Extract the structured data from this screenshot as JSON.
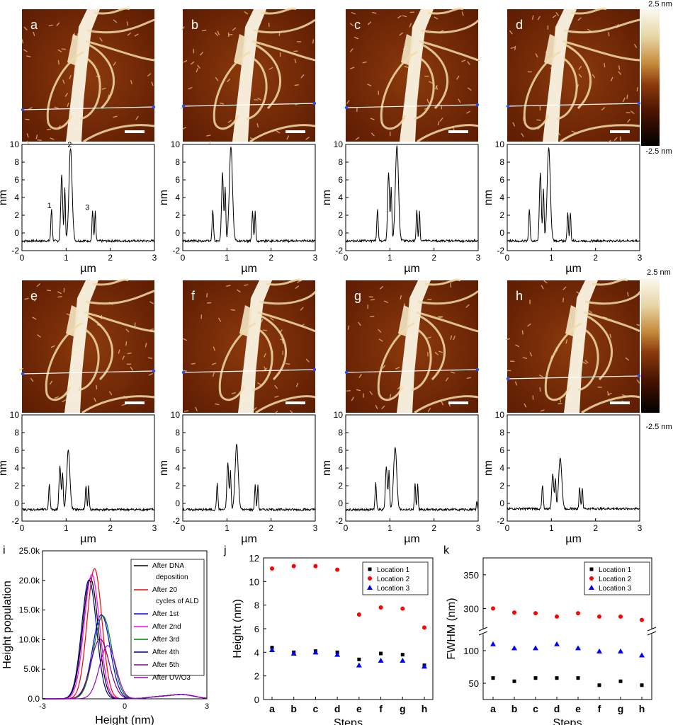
{
  "figure": {
    "colorbar": {
      "top_label": "2.5 nm",
      "bottom_label": "-2.5 nm"
    },
    "afm_panels": [
      {
        "label": "a",
        "line_color": "#ffffff"
      },
      {
        "label": "b",
        "line_color": "#ffffff"
      },
      {
        "label": "c",
        "line_color": "#ffffff"
      },
      {
        "label": "d",
        "line_color": "#ffffff"
      },
      {
        "label": "e",
        "line_color": "#ffffff"
      },
      {
        "label": "f",
        "line_color": "#ffffff"
      },
      {
        "label": "g",
        "line_color": "#ffffff"
      },
      {
        "label": "h",
        "line_color": "#ffffff"
      }
    ],
    "colors": {
      "afm_dark": "#5a1a02",
      "afm_mid": "#8c3a0c",
      "afm_bright": "#fbf5e4",
      "marker_blue": "#1f4fff",
      "loc1": "#000000",
      "loc2": "#ff0000",
      "loc3": "#0000ff"
    }
  },
  "chart_data": [
    {
      "panel": "a",
      "type": "line",
      "xlabel": "µm",
      "ylabel": "nm",
      "xlim": [
        0,
        3
      ],
      "ylim": [
        -2,
        10
      ],
      "xticks": [
        0,
        1,
        2,
        3
      ],
      "yticks": [
        -2,
        0,
        2,
        4,
        6,
        8,
        10
      ],
      "annotations": [
        {
          "text": "1",
          "x": 0.62,
          "y": 2.8
        },
        {
          "text": "2",
          "x": 1.08,
          "y": 9.7
        },
        {
          "text": "3",
          "x": 1.48,
          "y": 2.6
        }
      ],
      "peaks": [
        {
          "x": 0.67,
          "h": 2.7,
          "w": 0.022
        },
        {
          "x": 0.9,
          "h": 6.7,
          "w": 0.03
        },
        {
          "x": 0.97,
          "h": 5.0,
          "w": 0.02
        },
        {
          "x": 1.1,
          "h": 9.6,
          "w": 0.05
        },
        {
          "x": 1.6,
          "h": 2.5,
          "w": 0.02
        },
        {
          "x": 1.66,
          "h": 2.4,
          "w": 0.018
        }
      ],
      "baseline": -0.9
    },
    {
      "panel": "b",
      "type": "line",
      "xlabel": "µm",
      "ylabel": "nm",
      "xlim": [
        0,
        3
      ],
      "ylim": [
        -2,
        10
      ],
      "xticks": [
        0,
        1,
        2,
        3
      ],
      "yticks": [
        -2,
        0,
        2,
        4,
        6,
        8,
        10
      ],
      "peaks": [
        {
          "x": 0.68,
          "h": 2.7,
          "w": 0.022
        },
        {
          "x": 0.9,
          "h": 6.8,
          "w": 0.03
        },
        {
          "x": 0.96,
          "h": 5.0,
          "w": 0.02
        },
        {
          "x": 1.09,
          "h": 9.8,
          "w": 0.05
        },
        {
          "x": 1.58,
          "h": 2.5,
          "w": 0.02
        },
        {
          "x": 1.64,
          "h": 2.4,
          "w": 0.018
        }
      ],
      "baseline": -0.9
    },
    {
      "panel": "c",
      "type": "line",
      "xlabel": "µm",
      "ylabel": "nm",
      "xlim": [
        0,
        3
      ],
      "ylim": [
        -2,
        10
      ],
      "xticks": [
        0,
        1,
        2,
        3
      ],
      "yticks": [
        -2,
        0,
        2,
        4,
        6,
        8,
        10
      ],
      "peaks": [
        {
          "x": 0.72,
          "h": 2.7,
          "w": 0.022
        },
        {
          "x": 0.97,
          "h": 6.8,
          "w": 0.03
        },
        {
          "x": 1.03,
          "h": 5.0,
          "w": 0.02
        },
        {
          "x": 1.16,
          "h": 9.9,
          "w": 0.05
        },
        {
          "x": 1.61,
          "h": 2.6,
          "w": 0.02
        },
        {
          "x": 1.67,
          "h": 2.5,
          "w": 0.018
        }
      ],
      "baseline": -0.9
    },
    {
      "panel": "d",
      "type": "line",
      "xlabel": "µm",
      "ylabel": "nm",
      "xlim": [
        0,
        3
      ],
      "ylim": [
        -2,
        10
      ],
      "xticks": [
        0,
        1,
        2,
        3
      ],
      "yticks": [
        -2,
        0,
        2,
        4,
        6,
        8,
        10
      ],
      "peaks": [
        {
          "x": 0.5,
          "h": 2.7,
          "w": 0.022
        },
        {
          "x": 0.75,
          "h": 6.8,
          "w": 0.03
        },
        {
          "x": 0.82,
          "h": 5.0,
          "w": 0.02
        },
        {
          "x": 0.94,
          "h": 9.6,
          "w": 0.05
        },
        {
          "x": 1.37,
          "h": 2.4,
          "w": 0.02
        },
        {
          "x": 1.43,
          "h": 2.3,
          "w": 0.018
        }
      ],
      "baseline": -0.9
    },
    {
      "panel": "e",
      "type": "line",
      "xlabel": "µm",
      "ylabel": "nm",
      "xlim": [
        0,
        3
      ],
      "ylim": [
        -2,
        10
      ],
      "xticks": [
        0,
        1,
        2,
        3
      ],
      "yticks": [
        -2,
        0,
        2,
        4,
        6,
        8,
        10
      ],
      "peaks": [
        {
          "x": 0.62,
          "h": 2.2,
          "w": 0.022
        },
        {
          "x": 0.86,
          "h": 4.2,
          "w": 0.03
        },
        {
          "x": 0.92,
          "h": 3.4,
          "w": 0.02
        },
        {
          "x": 1.05,
          "h": 6.0,
          "w": 0.05
        },
        {
          "x": 1.45,
          "h": 2.1,
          "w": 0.02
        },
        {
          "x": 1.51,
          "h": 2.0,
          "w": 0.018
        }
      ],
      "baseline": -0.7
    },
    {
      "panel": "f",
      "type": "line",
      "xlabel": "µm",
      "ylabel": "nm",
      "xlim": [
        0,
        3
      ],
      "ylim": [
        -2,
        10
      ],
      "xticks": [
        0,
        1,
        2,
        3
      ],
      "yticks": [
        -2,
        0,
        2,
        4,
        6,
        8,
        10
      ],
      "peaks": [
        {
          "x": 0.78,
          "h": 2.2,
          "w": 0.022
        },
        {
          "x": 1.02,
          "h": 4.6,
          "w": 0.03
        },
        {
          "x": 1.08,
          "h": 3.6,
          "w": 0.02
        },
        {
          "x": 1.22,
          "h": 6.7,
          "w": 0.05
        },
        {
          "x": 1.64,
          "h": 2.1,
          "w": 0.02
        },
        {
          "x": 1.7,
          "h": 2.0,
          "w": 0.018
        }
      ],
      "baseline": -0.7
    },
    {
      "panel": "g",
      "type": "line",
      "xlabel": "µm",
      "ylabel": "nm",
      "xlim": [
        0,
        3
      ],
      "ylim": [
        -2,
        10
      ],
      "xticks": [
        0,
        1,
        2,
        3
      ],
      "yticks": [
        -2,
        0,
        2,
        4,
        6,
        8,
        10
      ],
      "peaks": [
        {
          "x": 0.68,
          "h": 2.3,
          "w": 0.022
        },
        {
          "x": 0.92,
          "h": 4.2,
          "w": 0.03
        },
        {
          "x": 0.98,
          "h": 3.6,
          "w": 0.02
        },
        {
          "x": 1.12,
          "h": 6.4,
          "w": 0.05
        },
        {
          "x": 1.57,
          "h": 2.2,
          "w": 0.02
        },
        {
          "x": 1.63,
          "h": 2.1,
          "w": 0.018
        },
        {
          "x": 2.97,
          "h": 0.3,
          "w": 0.015
        }
      ],
      "baseline": -0.7
    },
    {
      "panel": "h",
      "type": "line",
      "xlabel": "µm",
      "ylabel": "nm",
      "xlim": [
        0,
        3
      ],
      "ylim": [
        -2,
        10
      ],
      "xticks": [
        0,
        1,
        2,
        3
      ],
      "yticks": [
        -2,
        0,
        2,
        4,
        6,
        8,
        10
      ],
      "peaks": [
        {
          "x": 0.8,
          "h": 2.0,
          "w": 0.022
        },
        {
          "x": 1.03,
          "h": 3.4,
          "w": 0.03
        },
        {
          "x": 1.09,
          "h": 2.8,
          "w": 0.02
        },
        {
          "x": 1.2,
          "h": 5.2,
          "w": 0.05
        },
        {
          "x": 1.64,
          "h": 1.9,
          "w": 0.02
        },
        {
          "x": 1.7,
          "h": 1.8,
          "w": 0.018
        }
      ],
      "baseline": -0.6
    },
    {
      "panel": "i",
      "type": "line",
      "xlabel": "Height (nm)",
      "ylabel": "Height population",
      "xlim": [
        -3,
        3
      ],
      "ylim": [
        0,
        25000
      ],
      "xticks": [
        -3,
        0,
        3
      ],
      "yticks": [
        0,
        5000,
        10000,
        15000,
        20000,
        25000
      ],
      "ytick_labels": [
        "0.0",
        "5.0k",
        "10.0k",
        "15.0k",
        "20.0k",
        "25.0k"
      ],
      "series": [
        {
          "name": "After DNA deposition",
          "color": "#000000",
          "center": -1.25,
          "sigma": 0.28,
          "peak": 20300
        },
        {
          "name": "After 20 cycles of ALD",
          "color": "#ff0000",
          "center": -1.1,
          "sigma": 0.27,
          "peak": 22000
        },
        {
          "name": "After 1st",
          "color": "#0000ff",
          "center": -0.85,
          "sigma": 0.32,
          "peak": 14200
        },
        {
          "name": "After 2nd",
          "color": "#ff00ff",
          "center": -1.2,
          "sigma": 0.28,
          "peak": 21000
        },
        {
          "name": "After 3rd",
          "color": "#008000",
          "center": -0.8,
          "sigma": 0.33,
          "peak": 14000
        },
        {
          "name": "After 4th",
          "color": "#000080",
          "center": -1.3,
          "sigma": 0.27,
          "peak": 20100
        },
        {
          "name": "After 5th",
          "color": "#800080",
          "center": -0.9,
          "sigma": 0.33,
          "peak": 10100
        },
        {
          "name": "After UV/O3",
          "color": "#9900cc",
          "center": -0.62,
          "sigma": 0.3,
          "peak": 9000
        }
      ],
      "legend": "top-right"
    },
    {
      "panel": "j",
      "type": "scatter",
      "xlabel": "Steps",
      "ylabel": "Height (nm)",
      "categories": [
        "a",
        "b",
        "c",
        "d",
        "e",
        "f",
        "g",
        "h"
      ],
      "ylim": [
        0,
        12
      ],
      "yticks": [
        0,
        2,
        4,
        6,
        8,
        10,
        12
      ],
      "series": [
        {
          "name": "Location 1",
          "marker": "square",
          "color": "#000000",
          "values": [
            4.4,
            4.0,
            4.1,
            4.0,
            3.4,
            3.9,
            3.8,
            2.9
          ]
        },
        {
          "name": "Location 2",
          "marker": "circle",
          "color": "#ff0000",
          "values": [
            11.1,
            11.3,
            11.3,
            11.0,
            7.2,
            7.8,
            7.7,
            6.1
          ]
        },
        {
          "name": "Location 3",
          "marker": "triangle",
          "color": "#0000ff",
          "values": [
            4.2,
            3.9,
            4.0,
            3.8,
            2.9,
            3.3,
            3.3,
            2.8
          ]
        }
      ],
      "legend": "top-right"
    },
    {
      "panel": "k",
      "type": "scatter",
      "xlabel": "Steps",
      "ylabel": "FWHM (nm)",
      "categories": [
        "a",
        "b",
        "c",
        "d",
        "e",
        "f",
        "g",
        "h"
      ],
      "broken_axis": true,
      "lower_range": [
        25,
        125
      ],
      "upper_range": [
        270,
        375
      ],
      "yticks_lower": [
        50,
        100
      ],
      "yticks_upper": [
        300,
        350
      ],
      "series": [
        {
          "name": "Location 1",
          "marker": "square",
          "color": "#000000",
          "values": [
            58,
            53,
            58,
            58,
            58,
            47,
            53,
            47
          ]
        },
        {
          "name": "Location 2",
          "marker": "circle",
          "color": "#ff0000",
          "values": [
            300,
            294,
            293,
            288,
            293,
            288,
            288,
            283
          ]
        },
        {
          "name": "Location 3",
          "marker": "triangle",
          "color": "#0000ff",
          "values": [
            110,
            104,
            104,
            110,
            104,
            99,
            99,
            93
          ]
        }
      ],
      "legend": "top-right"
    }
  ]
}
